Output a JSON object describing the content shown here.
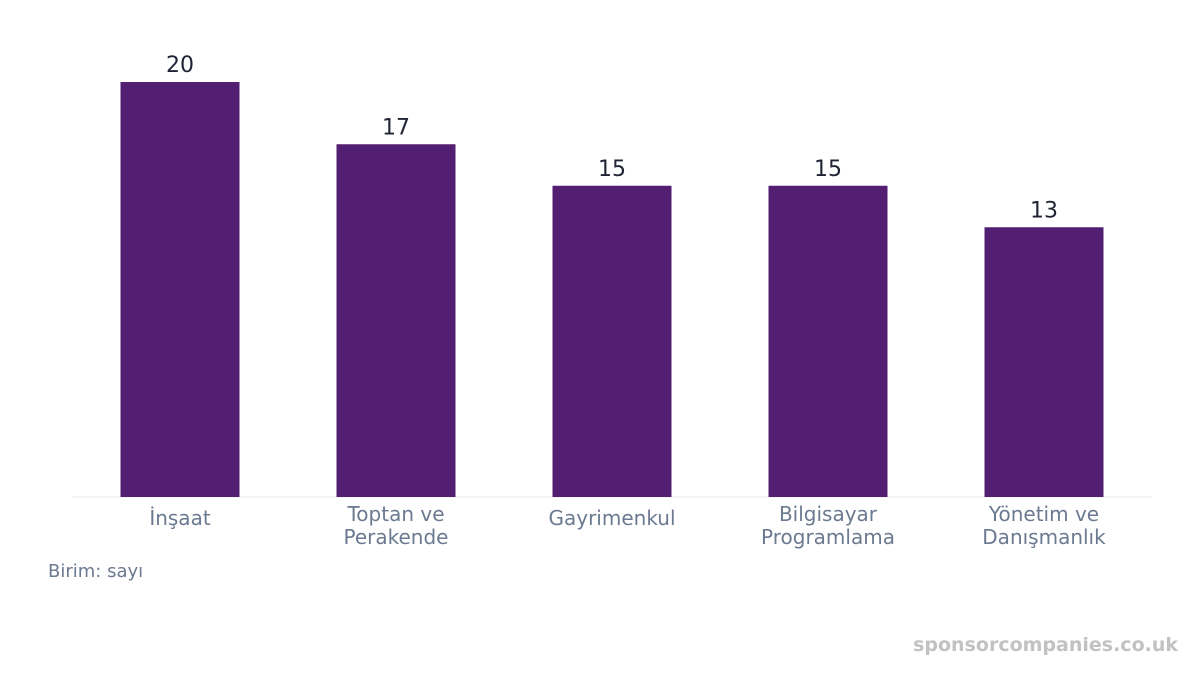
{
  "chart_data": {
    "type": "bar",
    "categories": [
      [
        "İnşaat"
      ],
      [
        "Toptan ve",
        "Perakende"
      ],
      [
        "Gayrimenkul"
      ],
      [
        "Bilgisayar",
        "Programlama"
      ],
      [
        "Yönetim ve",
        "Danışmanlık"
      ]
    ],
    "values": [
      20,
      17,
      15,
      15,
      13
    ],
    "ylim": [
      0,
      20
    ],
    "bar_color": "#521f73",
    "grid": false
  },
  "unit_note": "Birim: sayı",
  "watermark": "sponsorcompanies.co.uk"
}
